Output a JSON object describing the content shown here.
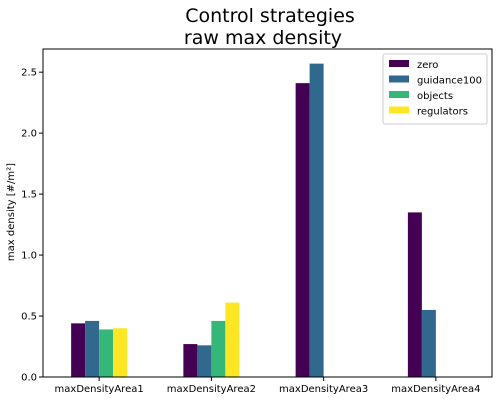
{
  "chart_data": {
    "type": "bar",
    "title_line1": "Control strategies",
    "title_line2": "raw max density",
    "xlabel": "",
    "ylabel": "max density [#/m²]",
    "categories": [
      "maxDensityArea1",
      "maxDensityArea2",
      "maxDensityArea3",
      "maxDensityArea4"
    ],
    "ylim": [
      0,
      2.69
    ],
    "yticks": [
      0.0,
      0.5,
      1.0,
      1.5,
      2.0,
      2.5
    ],
    "ytick_labels": [
      "0.0",
      "0.5",
      "1.0",
      "1.5",
      "2.0",
      "2.5"
    ],
    "grid": false,
    "legend_position": "top-right",
    "series": [
      {
        "name": "zero",
        "color": "#440154",
        "values": [
          0.44,
          0.27,
          2.41,
          1.35
        ]
      },
      {
        "name": "guidance100",
        "color": "#31688e",
        "values": [
          0.46,
          0.26,
          2.57,
          0.55
        ]
      },
      {
        "name": "objects",
        "color": "#35b779",
        "values": [
          0.39,
          0.46,
          null,
          null
        ]
      },
      {
        "name": "regulators",
        "color": "#fde725",
        "values": [
          0.4,
          0.61,
          null,
          null
        ]
      }
    ]
  }
}
